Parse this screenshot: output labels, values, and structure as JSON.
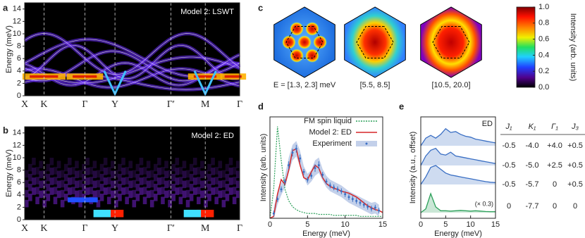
{
  "panel_labels": [
    "a",
    "b",
    "c",
    "d",
    "e"
  ],
  "chart_data": [
    {
      "type": "heatmap",
      "title": "Model 2: LSWT",
      "ylabel": "Energy (meV)",
      "ylim": [
        0,
        15
      ],
      "yticks": [
        0,
        2,
        4,
        6,
        8,
        10,
        12,
        14
      ],
      "categories": [
        "X",
        "K",
        "Γ",
        "Y",
        "Γ′",
        "M",
        "Γ"
      ]
    },
    {
      "type": "heatmap",
      "title": "Model 2: ED",
      "ylabel": "Energy (meV)",
      "ylim": [
        0,
        15
      ],
      "yticks": [
        0,
        2,
        4,
        6,
        8,
        10,
        12,
        14
      ],
      "categories": [
        "X",
        "K",
        "Γ",
        "Y",
        "Γ′",
        "M",
        "Γ"
      ]
    },
    {
      "type": "map",
      "maps": [
        "E = [1.3, 2.3] meV",
        "[5.5, 8.5]",
        "[10.5, 20.0]"
      ],
      "colorbar_label": "Intensity (arb. units)",
      "clim": [
        0,
        1
      ],
      "cticks": [
        {
          "value": 0,
          "label": "0.0"
        },
        {
          "value": 0.2,
          "label": "0.2"
        },
        {
          "value": 0.4,
          "label": "0.4"
        },
        {
          "value": 0.6,
          "label": "0.6"
        },
        {
          "value": 0.8,
          "label": "0.8"
        },
        {
          "value": 1,
          "label": "1.0"
        }
      ]
    },
    {
      "type": "line",
      "xlabel": "Energy (meV)",
      "ylabel": "Intensity (arb. units)",
      "xlim": [
        0,
        15
      ],
      "xticks": [
        0,
        5,
        10,
        15
      ],
      "ylim": [
        0,
        1.05
      ],
      "legend": "upper right",
      "series": [
        {
          "name": "FM spin liquid",
          "color": "#2ca05a",
          "x": [
            0,
            0.5,
            1,
            1.5,
            2,
            2.5,
            3,
            3.5,
            4,
            4.5,
            5,
            5.5,
            6,
            6.5,
            7,
            7.5,
            8,
            8.5,
            9,
            9.5,
            10,
            10.5,
            11,
            11.5,
            12,
            12.5,
            13,
            13.5,
            14,
            14.5,
            15
          ],
          "values": [
            0,
            0.3,
            0.95,
            0.6,
            0.3,
            0.18,
            0.12,
            0.09,
            0.07,
            0.06,
            0.05,
            0.05,
            0.05,
            0.04,
            0.04,
            0.04,
            0.04,
            0.03,
            0.03,
            0.03,
            0.03,
            0.03,
            0.03,
            0.03,
            0.02,
            0.02,
            0.02,
            0.02,
            0.02,
            0.02,
            0.02
          ]
        },
        {
          "name": "Model 2: ED",
          "color": "#d62728",
          "x": [
            0,
            0.5,
            1,
            1.5,
            2,
            2.5,
            3,
            3.5,
            4,
            4.5,
            5,
            5.5,
            6,
            6.5,
            7,
            7.5,
            8,
            8.5,
            9,
            9.5,
            10,
            10.5,
            11,
            11.5,
            12,
            12.5,
            13,
            13.5,
            14,
            14.5,
            15
          ],
          "values": [
            0,
            0.02,
            0.25,
            0.4,
            0.35,
            0.5,
            0.7,
            0.72,
            0.55,
            0.42,
            0.4,
            0.48,
            0.55,
            0.52,
            0.42,
            0.36,
            0.33,
            0.31,
            0.3,
            0.28,
            0.27,
            0.26,
            0.24,
            0.22,
            0.19,
            0.16,
            0.13,
            0.11,
            0.09,
            0.08,
            0.06
          ]
        },
        {
          "name": "Experiment",
          "color": "#3a6fc4",
          "band_color": "#c3d0ea",
          "x": [
            0.5,
            1,
            1.5,
            2,
            2.5,
            3,
            3.5,
            4,
            4.5,
            5,
            5.5,
            6,
            6.5,
            7,
            7.5,
            8,
            8.5,
            9,
            9.5,
            10,
            10.5,
            11,
            11.5,
            12,
            12.5,
            13,
            13.5,
            14,
            14.5
          ],
          "values": [
            0.05,
            0.2,
            0.3,
            0.38,
            0.55,
            0.68,
            0.72,
            0.62,
            0.48,
            0.4,
            0.44,
            0.52,
            0.55,
            0.45,
            0.38,
            0.34,
            0.32,
            0.3,
            0.28,
            0.25,
            0.22,
            0.2,
            0.18,
            0.16,
            0.14,
            0.12,
            0.1,
            0.11,
            0.08
          ],
          "errors": [
            0.03,
            0.03,
            0.03,
            0.03,
            0.04,
            0.04,
            0.04,
            0.04,
            0.03,
            0.03,
            0.03,
            0.04,
            0.04,
            0.03,
            0.03,
            0.03,
            0.03,
            0.03,
            0.03,
            0.03,
            0.03,
            0.03,
            0.03,
            0.03,
            0.03,
            0.03,
            0.03,
            0.03,
            0.03
          ]
        }
      ]
    },
    {
      "type": "offset-line",
      "title": "ED",
      "xlabel": "Energy (meV)",
      "ylabel": "Intensity (a.u., offset)",
      "xlim": [
        0,
        15
      ],
      "xticks": [
        0,
        5,
        10,
        15
      ],
      "x": [
        0,
        1,
        2,
        3,
        4,
        5,
        6,
        7,
        8,
        9,
        10,
        11,
        12,
        13,
        14,
        15
      ],
      "series": [
        {
          "color": "#3a6fc4",
          "values": [
            0,
            0.4,
            0.55,
            0.4,
            0.6,
            0.9,
            0.7,
            0.75,
            0.6,
            0.5,
            0.45,
            0.35,
            0.3,
            0.25,
            0.2,
            0.15
          ]
        },
        {
          "color": "#3a6fc4",
          "values": [
            0,
            0.5,
            0.8,
            0.9,
            0.6,
            0.55,
            0.7,
            0.5,
            0.45,
            0.4,
            0.35,
            0.3,
            0.25,
            0.2,
            0.15,
            0.1
          ]
        },
        {
          "color": "#3a6fc4",
          "values": [
            0,
            0.4,
            0.9,
            1.0,
            0.8,
            0.6,
            0.5,
            0.45,
            0.4,
            0.35,
            0.3,
            0.25,
            0.2,
            0.15,
            0.12,
            0.1
          ]
        },
        {
          "color": "#2ca05a",
          "note": "(× 0.3)",
          "values": [
            0,
            0.2,
            1.0,
            0.3,
            0.1,
            0.1,
            0.08,
            0.1,
            0.12,
            0.1,
            0.08,
            0.1,
            0.08,
            0.06,
            0.05,
            0.05
          ]
        }
      ]
    }
  ],
  "table": {
    "headers": [
      "J₁",
      "K₁",
      "Γ₁",
      "J₃"
    ],
    "rows": [
      [
        "-0.5",
        "-4.0",
        "+4.0",
        "+0.5"
      ],
      [
        "-0.5",
        "-5.0",
        "+2.5",
        "+0.5"
      ],
      [
        "-0.5",
        "-5.7",
        "0",
        "+0.5"
      ],
      [
        "0",
        "-7.7",
        "0",
        "0"
      ]
    ]
  }
}
